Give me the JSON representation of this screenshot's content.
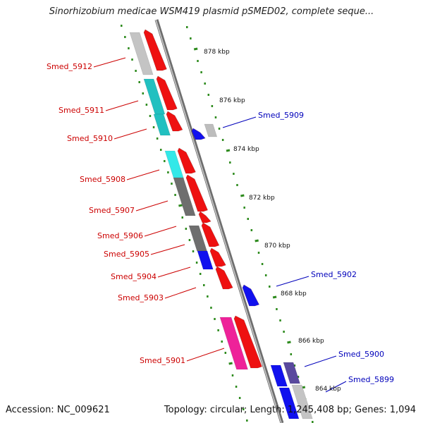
{
  "title": "Sinorhizobium medicae WSM419 plasmid pSMED02, complete seque...",
  "footer": {
    "accession": "Accession: NC_009621",
    "stats": "Topology: circular; Length: 1,245,408 bp; Genes: 1,094"
  },
  "colors": {
    "backbone": "#8a8a8a",
    "tick": "#2e8b1e",
    "left_label": "#cc0000",
    "right_label": "#0000bb"
  },
  "scale_labels": [
    "878 kbp",
    "876 kbp",
    "874 kbp",
    "872 kbp",
    "870 kbp",
    "868 kbp",
    "866 kbp",
    "864 kbp"
  ],
  "genes_left": [
    {
      "id": "Smed_5912"
    },
    {
      "id": "Smed_5911"
    },
    {
      "id": "Smed_5910"
    },
    {
      "id": "Smed_5908"
    },
    {
      "id": "Smed_5907"
    },
    {
      "id": "Smed_5906"
    },
    {
      "id": "Smed_5905"
    },
    {
      "id": "Smed_5904"
    },
    {
      "id": "Smed_5903"
    },
    {
      "id": "Smed_5901"
    }
  ],
  "genes_right": [
    {
      "id": "Smed_5909"
    },
    {
      "id": "Smed_5902"
    },
    {
      "id": "Smed_5900"
    },
    {
      "id": "Smed_5899"
    }
  ]
}
